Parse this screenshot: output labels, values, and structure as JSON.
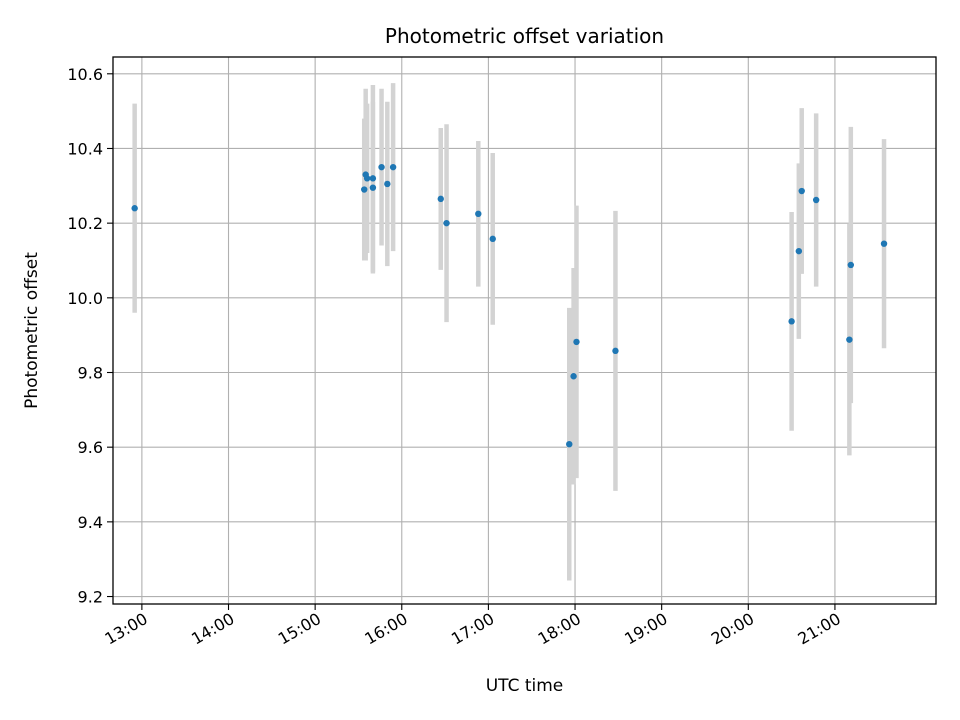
{
  "chart_data": {
    "type": "scatter",
    "title": "Photometric offset variation",
    "xlabel": "UTC time",
    "ylabel": "Photometric offset",
    "grid": true,
    "x_ticks": [
      "13:00",
      "14:00",
      "15:00",
      "16:00",
      "17:00",
      "18:00",
      "19:00",
      "20:00",
      "21:00"
    ],
    "y_ticks": [
      "9.2",
      "9.4",
      "9.6",
      "9.8",
      "10.0",
      "10.2",
      "10.4",
      "10.6"
    ],
    "xlim": [
      "12:40",
      "22:10"
    ],
    "ylim": [
      9.18,
      10.645
    ],
    "colors": {
      "point": "#1f77b4",
      "errorbar": "#d3d3d3",
      "grid": "#b0b0b0"
    },
    "points": [
      {
        "x": "12:55",
        "y": 10.24,
        "yerr": 0.28
      },
      {
        "x": "15:34",
        "y": 10.29,
        "yerr": 0.19
      },
      {
        "x": "15:35",
        "y": 10.33,
        "yerr": 0.23
      },
      {
        "x": "15:36",
        "y": 10.32,
        "yerr": 0.2
      },
      {
        "x": "15:40",
        "y": 10.32,
        "yerr": 0.25
      },
      {
        "x": "15:40",
        "y": 10.295,
        "yerr": 0.23
      },
      {
        "x": "15:46",
        "y": 10.35,
        "yerr": 0.21
      },
      {
        "x": "15:50",
        "y": 10.305,
        "yerr": 0.22
      },
      {
        "x": "15:54",
        "y": 10.35,
        "yerr": 0.225
      },
      {
        "x": "16:27",
        "y": 10.265,
        "yerr": 0.19
      },
      {
        "x": "16:31",
        "y": 10.2,
        "yerr": 0.265
      },
      {
        "x": "16:53",
        "y": 10.225,
        "yerr": 0.195
      },
      {
        "x": "17:03",
        "y": 10.158,
        "yerr": 0.23
      },
      {
        "x": "17:56",
        "y": 9.608,
        "yerr": 0.365
      },
      {
        "x": "17:59",
        "y": 9.79,
        "yerr": 0.29
      },
      {
        "x": "18:01",
        "y": 9.882,
        "yerr": 0.365
      },
      {
        "x": "18:28",
        "y": 9.858,
        "yerr": 0.375
      },
      {
        "x": "20:30",
        "y": 9.937,
        "yerr": 0.293
      },
      {
        "x": "20:35",
        "y": 10.125,
        "yerr": 0.235
      },
      {
        "x": "20:37",
        "y": 10.286,
        "yerr": 0.222
      },
      {
        "x": "20:47",
        "y": 10.262,
        "yerr": 0.232
      },
      {
        "x": "21:10",
        "y": 9.888,
        "yerr": 0.31
      },
      {
        "x": "21:11",
        "y": 10.088,
        "yerr": 0.37
      },
      {
        "x": "21:34",
        "y": 10.145,
        "yerr": 0.28
      }
    ]
  }
}
